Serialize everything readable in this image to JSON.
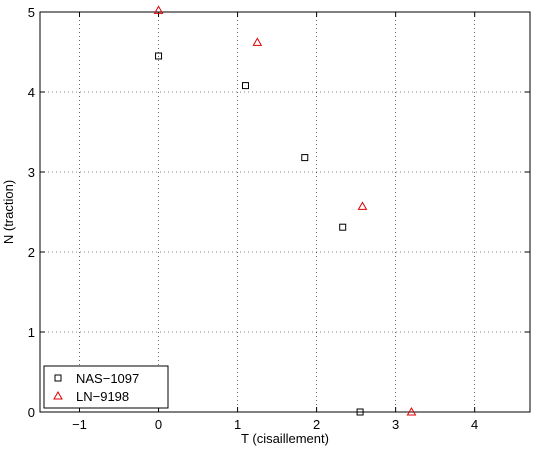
{
  "chart_data": {
    "type": "scatter",
    "title": "",
    "xlabel": "T (cisaillement)",
    "ylabel": "N (traction)",
    "xlim": [
      -1.5,
      4.7
    ],
    "ylim": [
      0,
      5
    ],
    "xticks": [
      -1,
      0,
      1,
      2,
      3,
      4
    ],
    "yticks": [
      0,
      1,
      2,
      3,
      4,
      5
    ],
    "xtick_labels": [
      "−1",
      "0",
      "1",
      "2",
      "3",
      "4"
    ],
    "ytick_labels": [
      "0",
      "1",
      "2",
      "3",
      "4",
      "5"
    ],
    "grid": true,
    "legend_position": "bottom-left",
    "series": [
      {
        "name": "NAS−1097",
        "marker": "square",
        "color": "#000000",
        "x": [
          0.0,
          1.1,
          1.85,
          2.33,
          2.55
        ],
        "y": [
          4.45,
          4.08,
          3.18,
          2.31,
          0.0
        ]
      },
      {
        "name": "LN−9198",
        "marker": "triangle",
        "color": "#e00000",
        "x": [
          0.0,
          1.25,
          2.58,
          3.2
        ],
        "y": [
          5.02,
          4.62,
          2.57,
          0.0
        ]
      }
    ]
  }
}
